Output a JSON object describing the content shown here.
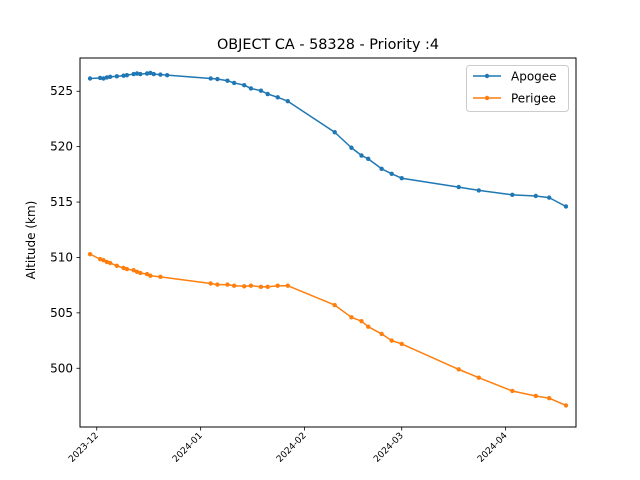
{
  "chart_data": {
    "type": "line",
    "title": "OBJECT CA - 58328 - Priority :4",
    "xlabel": "",
    "ylabel": "Altitude (km)",
    "x_type": "date",
    "xlim": [
      "2023-11-26",
      "2024-04-22"
    ],
    "ylim": [
      494.7,
      528.0
    ],
    "x_ticks": [
      "2023-12",
      "2024-01",
      "2024-02",
      "2024-03",
      "2024-04"
    ],
    "y_ticks": [
      500,
      505,
      510,
      515,
      520,
      525
    ],
    "grid": false,
    "legend": "top-right",
    "colors": {
      "Apogee": "#1f77b4",
      "Perigee": "#ff7f0e"
    },
    "series": [
      {
        "name": "Apogee",
        "color": "#1f77b4",
        "points": [
          [
            "2023-11-29",
            526.15
          ],
          [
            "2023-12-02",
            526.2
          ],
          [
            "2023-12-03",
            526.15
          ],
          [
            "2023-12-04",
            526.25
          ],
          [
            "2023-12-05",
            526.3
          ],
          [
            "2023-12-07",
            526.35
          ],
          [
            "2023-12-09",
            526.4
          ],
          [
            "2023-12-10",
            526.45
          ],
          [
            "2023-12-12",
            526.55
          ],
          [
            "2023-12-13",
            526.6
          ],
          [
            "2023-12-14",
            526.55
          ],
          [
            "2023-12-16",
            526.6
          ],
          [
            "2023-12-17",
            526.65
          ],
          [
            "2023-12-18",
            526.55
          ],
          [
            "2023-12-20",
            526.5
          ],
          [
            "2023-12-22",
            526.45
          ],
          [
            "2024-01-04",
            526.15
          ],
          [
            "2024-01-06",
            526.1
          ],
          [
            "2024-01-09",
            525.95
          ],
          [
            "2024-01-11",
            525.75
          ],
          [
            "2024-01-14",
            525.55
          ],
          [
            "2024-01-16",
            525.25
          ],
          [
            "2024-01-19",
            525.05
          ],
          [
            "2024-01-21",
            524.75
          ],
          [
            "2024-01-24",
            524.45
          ],
          [
            "2024-01-27",
            524.1
          ],
          [
            "2024-02-10",
            521.3
          ],
          [
            "2024-02-15",
            519.9
          ],
          [
            "2024-02-18",
            519.2
          ],
          [
            "2024-02-20",
            518.9
          ],
          [
            "2024-02-24",
            518.0
          ],
          [
            "2024-02-27",
            517.55
          ],
          [
            "2024-03-01",
            517.15
          ],
          [
            "2024-03-18",
            516.35
          ],
          [
            "2024-03-24",
            516.05
          ],
          [
            "2024-04-03",
            515.65
          ],
          [
            "2024-04-10",
            515.55
          ],
          [
            "2024-04-14",
            515.4
          ],
          [
            "2024-04-19",
            514.6
          ]
        ]
      },
      {
        "name": "Perigee",
        "color": "#ff7f0e",
        "points": [
          [
            "2023-11-29",
            510.3
          ],
          [
            "2023-12-02",
            509.85
          ],
          [
            "2023-12-03",
            509.75
          ],
          [
            "2023-12-04",
            509.6
          ],
          [
            "2023-12-05",
            509.5
          ],
          [
            "2023-12-07",
            509.25
          ],
          [
            "2023-12-09",
            509.05
          ],
          [
            "2023-12-10",
            508.95
          ],
          [
            "2023-12-12",
            508.85
          ],
          [
            "2023-12-13",
            508.7
          ],
          [
            "2023-12-14",
            508.6
          ],
          [
            "2023-12-16",
            508.5
          ],
          [
            "2023-12-17",
            508.35
          ],
          [
            "2023-12-20",
            508.25
          ],
          [
            "2024-01-04",
            507.65
          ],
          [
            "2024-01-06",
            507.55
          ],
          [
            "2024-01-09",
            507.55
          ],
          [
            "2024-01-11",
            507.45
          ],
          [
            "2024-01-14",
            507.4
          ],
          [
            "2024-01-16",
            507.45
          ],
          [
            "2024-01-19",
            507.35
          ],
          [
            "2024-01-21",
            507.35
          ],
          [
            "2024-01-24",
            507.45
          ],
          [
            "2024-01-27",
            507.45
          ],
          [
            "2024-02-10",
            505.7
          ],
          [
            "2024-02-15",
            504.6
          ],
          [
            "2024-02-18",
            504.25
          ],
          [
            "2024-02-20",
            503.75
          ],
          [
            "2024-02-24",
            503.1
          ],
          [
            "2024-02-27",
            502.5
          ],
          [
            "2024-03-01",
            502.2
          ],
          [
            "2024-03-18",
            499.9
          ],
          [
            "2024-03-24",
            499.15
          ],
          [
            "2024-04-03",
            497.95
          ],
          [
            "2024-04-10",
            497.5
          ],
          [
            "2024-04-14",
            497.3
          ],
          [
            "2024-04-19",
            496.65
          ]
        ]
      }
    ]
  }
}
